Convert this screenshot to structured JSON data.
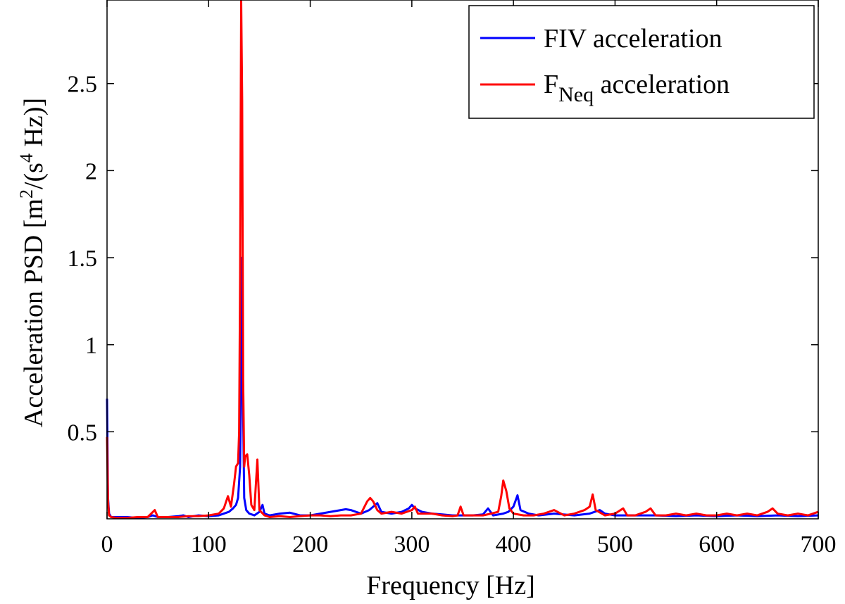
{
  "chart_data": {
    "type": "line",
    "xlabel": "Frequency  [Hz]",
    "ylabel": {
      "prefix": "Acceleration PSD  [m",
      "sup1": "2",
      "mid": "/(s",
      "sup2": "4",
      "suffix": " Hz)]"
    },
    "xlim": [
      0,
      700
    ],
    "ylim": [
      0,
      2.98
    ],
    "x_ticks": [
      0,
      100,
      200,
      300,
      400,
      500,
      600,
      700
    ],
    "x_tick_labels": [
      "0",
      "100",
      "200",
      "300",
      "400",
      "500",
      "600",
      "700"
    ],
    "y_ticks": [
      0.5,
      1,
      1.5,
      2,
      2.5
    ],
    "y_tick_labels": [
      "0.5",
      "1",
      "1.5",
      "2",
      "2.5"
    ],
    "grid": false,
    "legend_position": "top-right",
    "series": [
      {
        "name": "FIV acceleration",
        "name_parts": {
          "main": "FIV acceleration"
        },
        "color": "#0000ff",
        "points": [
          [
            0,
            0.69
          ],
          [
            1,
            0.12
          ],
          [
            2,
            0.03
          ],
          [
            4,
            0.01
          ],
          [
            10,
            0.01
          ],
          [
            20,
            0.01
          ],
          [
            30,
            0.005
          ],
          [
            40,
            0.01
          ],
          [
            45,
            0.02
          ],
          [
            50,
            0.01
          ],
          [
            60,
            0.01
          ],
          [
            70,
            0.015
          ],
          [
            75,
            0.02
          ],
          [
            80,
            0.01
          ],
          [
            90,
            0.02
          ],
          [
            100,
            0.015
          ],
          [
            110,
            0.02
          ],
          [
            115,
            0.03
          ],
          [
            120,
            0.04
          ],
          [
            124,
            0.06
          ],
          [
            127,
            0.08
          ],
          [
            129,
            0.12
          ],
          [
            131,
            0.3
          ],
          [
            132,
            0.8
          ],
          [
            133,
            1.5
          ],
          [
            134,
            0.6
          ],
          [
            135,
            0.12
          ],
          [
            137,
            0.05
          ],
          [
            140,
            0.03
          ],
          [
            145,
            0.02
          ],
          [
            150,
            0.04
          ],
          [
            153,
            0.08
          ],
          [
            155,
            0.03
          ],
          [
            160,
            0.02
          ],
          [
            170,
            0.03
          ],
          [
            180,
            0.035
          ],
          [
            190,
            0.02
          ],
          [
            200,
            0.02
          ],
          [
            210,
            0.03
          ],
          [
            220,
            0.04
          ],
          [
            230,
            0.05
          ],
          [
            235,
            0.055
          ],
          [
            240,
            0.05
          ],
          [
            250,
            0.03
          ],
          [
            258,
            0.05
          ],
          [
            262,
            0.07
          ],
          [
            266,
            0.09
          ],
          [
            270,
            0.04
          ],
          [
            280,
            0.03
          ],
          [
            290,
            0.04
          ],
          [
            297,
            0.06
          ],
          [
            300,
            0.08
          ],
          [
            303,
            0.06
          ],
          [
            310,
            0.04
          ],
          [
            320,
            0.03
          ],
          [
            330,
            0.025
          ],
          [
            340,
            0.02
          ],
          [
            350,
            0.02
          ],
          [
            360,
            0.02
          ],
          [
            370,
            0.025
          ],
          [
            375,
            0.06
          ],
          [
            380,
            0.02
          ],
          [
            390,
            0.03
          ],
          [
            395,
            0.04
          ],
          [
            400,
            0.07
          ],
          [
            404,
            0.135
          ],
          [
            407,
            0.05
          ],
          [
            415,
            0.03
          ],
          [
            425,
            0.02
          ],
          [
            440,
            0.03
          ],
          [
            460,
            0.02
          ],
          [
            475,
            0.03
          ],
          [
            480,
            0.04
          ],
          [
            485,
            0.05
          ],
          [
            490,
            0.03
          ],
          [
            500,
            0.02
          ],
          [
            520,
            0.02
          ],
          [
            540,
            0.02
          ],
          [
            560,
            0.015
          ],
          [
            580,
            0.02
          ],
          [
            600,
            0.015
          ],
          [
            620,
            0.02
          ],
          [
            640,
            0.015
          ],
          [
            660,
            0.02
          ],
          [
            680,
            0.015
          ],
          [
            700,
            0.02
          ]
        ]
      },
      {
        "name": "FNeq acceleration",
        "name_parts": {
          "main": "F",
          "sub": "Neq",
          "rest": " acceleration"
        },
        "color": "#ff0000",
        "points": [
          [
            0,
            0.47
          ],
          [
            1,
            0.1
          ],
          [
            2,
            0.02
          ],
          [
            4,
            0.01
          ],
          [
            10,
            0.005
          ],
          [
            20,
            0.005
          ],
          [
            30,
            0.01
          ],
          [
            40,
            0.01
          ],
          [
            47,
            0.05
          ],
          [
            50,
            0.01
          ],
          [
            60,
            0.01
          ],
          [
            70,
            0.01
          ],
          [
            80,
            0.015
          ],
          [
            90,
            0.015
          ],
          [
            100,
            0.02
          ],
          [
            110,
            0.03
          ],
          [
            115,
            0.06
          ],
          [
            119,
            0.13
          ],
          [
            122,
            0.07
          ],
          [
            125,
            0.2
          ],
          [
            127,
            0.3
          ],
          [
            129,
            0.32
          ],
          [
            130,
            0.5
          ],
          [
            131,
            1.4
          ],
          [
            132,
            2.98
          ],
          [
            133,
            2.4
          ],
          [
            134,
            0.8
          ],
          [
            135,
            0.3
          ],
          [
            136,
            0.36
          ],
          [
            138,
            0.37
          ],
          [
            140,
            0.25
          ],
          [
            142,
            0.08
          ],
          [
            145,
            0.05
          ],
          [
            148,
            0.34
          ],
          [
            150,
            0.05
          ],
          [
            155,
            0.02
          ],
          [
            160,
            0.01
          ],
          [
            170,
            0.015
          ],
          [
            180,
            0.01
          ],
          [
            190,
            0.015
          ],
          [
            200,
            0.02
          ],
          [
            210,
            0.02
          ],
          [
            220,
            0.015
          ],
          [
            230,
            0.02
          ],
          [
            240,
            0.02
          ],
          [
            250,
            0.03
          ],
          [
            256,
            0.1
          ],
          [
            259,
            0.12
          ],
          [
            262,
            0.1
          ],
          [
            266,
            0.05
          ],
          [
            270,
            0.03
          ],
          [
            280,
            0.04
          ],
          [
            290,
            0.03
          ],
          [
            300,
            0.05
          ],
          [
            303,
            0.07
          ],
          [
            306,
            0.03
          ],
          [
            320,
            0.03
          ],
          [
            330,
            0.02
          ],
          [
            340,
            0.015
          ],
          [
            345,
            0.02
          ],
          [
            348,
            0.07
          ],
          [
            351,
            0.02
          ],
          [
            360,
            0.02
          ],
          [
            370,
            0.02
          ],
          [
            378,
            0.03
          ],
          [
            385,
            0.04
          ],
          [
            388,
            0.13
          ],
          [
            390,
            0.22
          ],
          [
            393,
            0.16
          ],
          [
            396,
            0.06
          ],
          [
            400,
            0.03
          ],
          [
            410,
            0.02
          ],
          [
            420,
            0.02
          ],
          [
            430,
            0.03
          ],
          [
            440,
            0.05
          ],
          [
            450,
            0.02
          ],
          [
            460,
            0.03
          ],
          [
            470,
            0.05
          ],
          [
            475,
            0.07
          ],
          [
            478,
            0.14
          ],
          [
            481,
            0.05
          ],
          [
            490,
            0.02
          ],
          [
            500,
            0.03
          ],
          [
            508,
            0.06
          ],
          [
            512,
            0.02
          ],
          [
            520,
            0.02
          ],
          [
            530,
            0.04
          ],
          [
            535,
            0.06
          ],
          [
            540,
            0.02
          ],
          [
            550,
            0.02
          ],
          [
            560,
            0.03
          ],
          [
            570,
            0.02
          ],
          [
            580,
            0.03
          ],
          [
            590,
            0.02
          ],
          [
            600,
            0.02
          ],
          [
            610,
            0.03
          ],
          [
            620,
            0.02
          ],
          [
            630,
            0.03
          ],
          [
            640,
            0.02
          ],
          [
            650,
            0.04
          ],
          [
            655,
            0.06
          ],
          [
            660,
            0.03
          ],
          [
            670,
            0.02
          ],
          [
            680,
            0.03
          ],
          [
            690,
            0.02
          ],
          [
            700,
            0.04
          ]
        ]
      }
    ]
  }
}
